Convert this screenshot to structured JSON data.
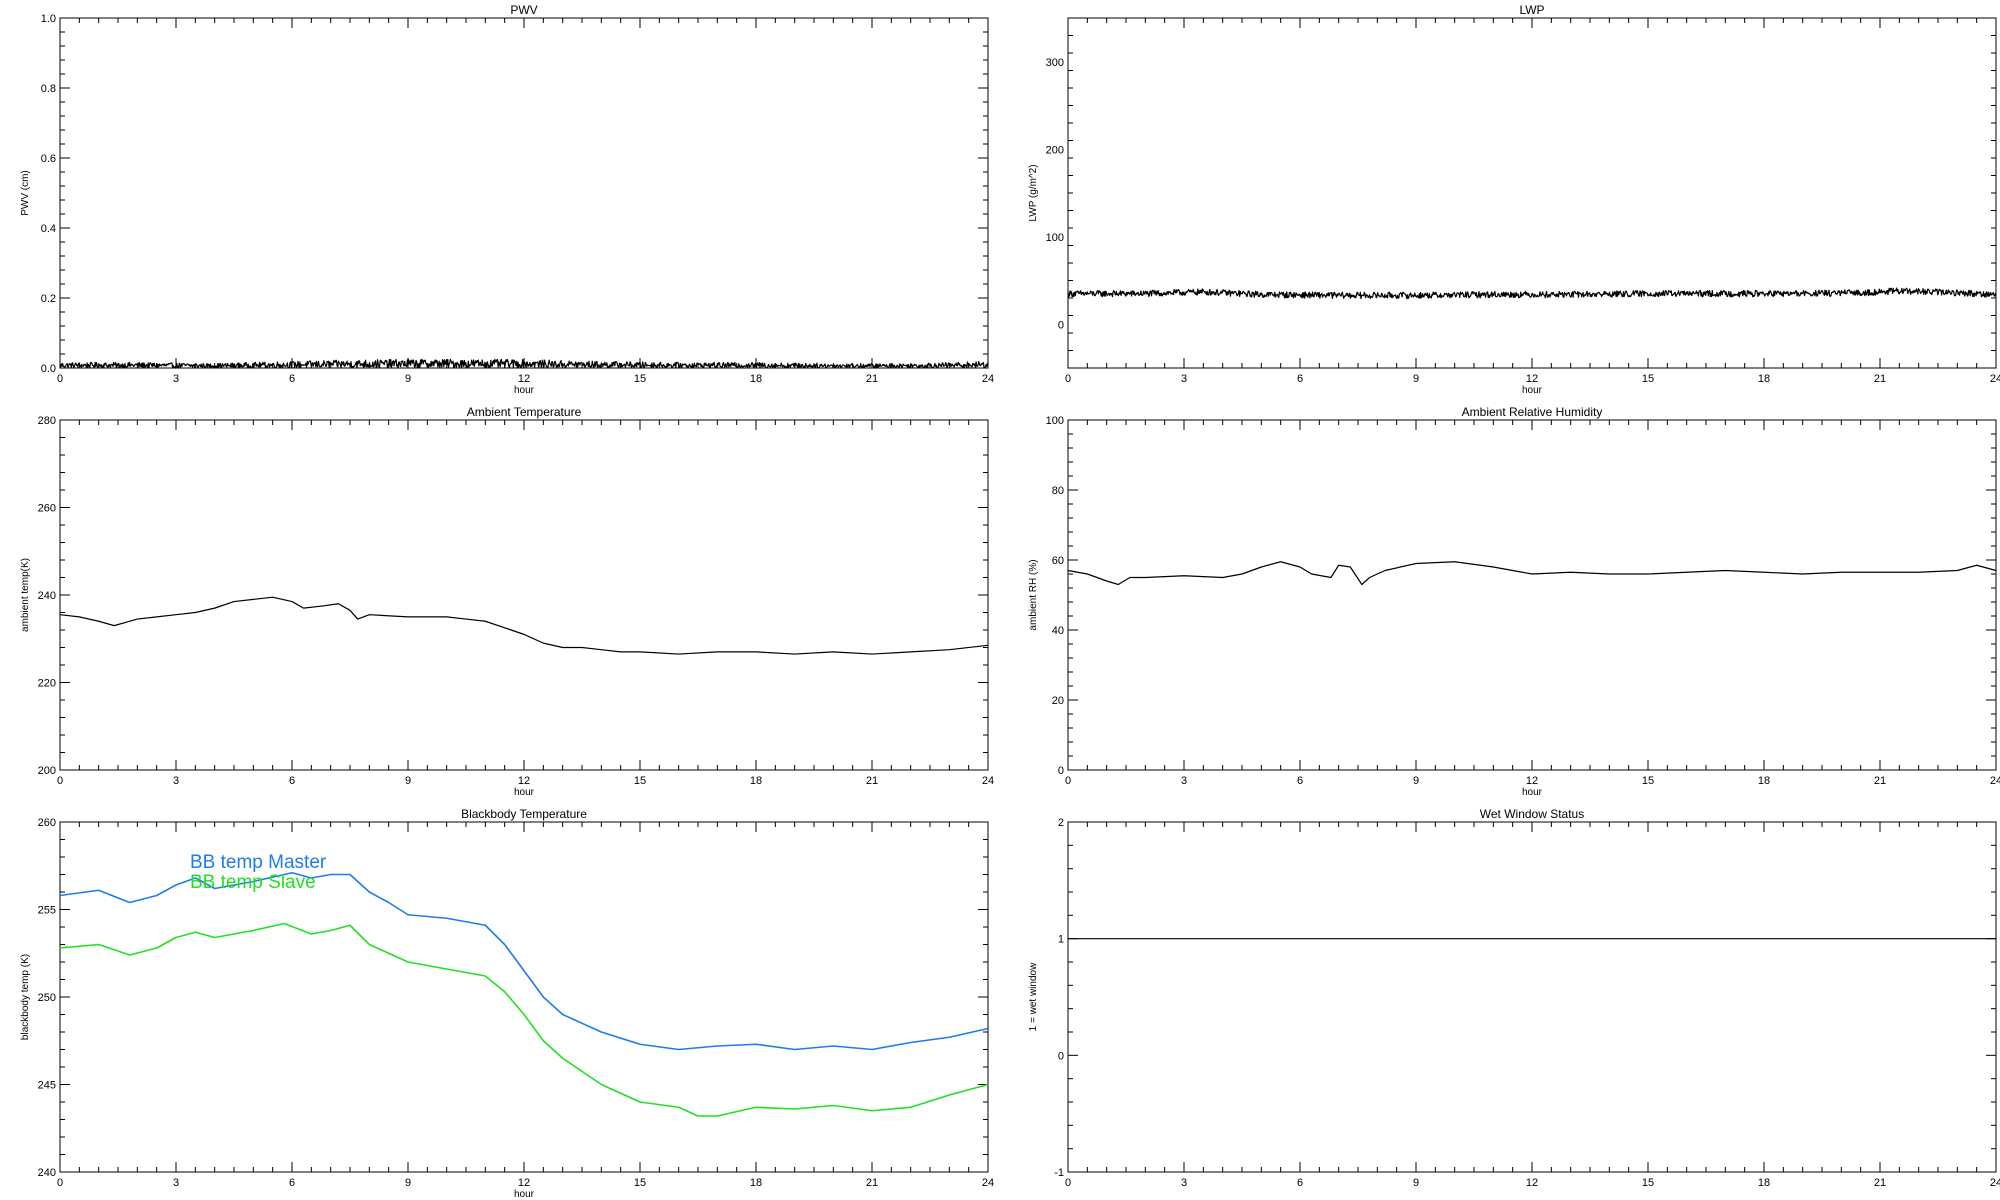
{
  "colors": {
    "background": "#ffffff",
    "axes": "#000000",
    "master": "#1e7bf0",
    "slave": "#22e020"
  },
  "chart_data": [
    {
      "type": "line",
      "title": "PWV",
      "xlabel": "hour",
      "ylabel": "PWV (cm)",
      "xlim": [
        0,
        24
      ],
      "ylim": [
        0,
        1
      ],
      "xticks": [
        0,
        3,
        6,
        9,
        12,
        15,
        18,
        21,
        24
      ],
      "yticks": [
        0,
        0.2,
        0.4,
        0.6,
        0.8,
        1
      ],
      "ytick_labels": [
        "0.0",
        "0.2",
        "0.4",
        "0.6",
        "0.8",
        "1.0"
      ],
      "series": [
        {
          "name": "",
          "color": "#000000",
          "noisy": true,
          "x": [
            0,
            2,
            4,
            6,
            8,
            10,
            12,
            14,
            16,
            18,
            20,
            22,
            24
          ],
          "y": [
            0.01,
            0.01,
            0.008,
            0.012,
            0.015,
            0.016,
            0.015,
            0.012,
            0.01,
            0.01,
            0.008,
            0.008,
            0.012
          ]
        }
      ]
    },
    {
      "type": "line",
      "title": "LWP",
      "xlabel": "hour",
      "ylabel": "LWP (g/m^2)",
      "xlim": [
        0,
        24
      ],
      "ylim": [
        -50,
        350
      ],
      "xticks": [
        0,
        3,
        6,
        9,
        12,
        15,
        18,
        21,
        24
      ],
      "yticks": [
        0,
        100,
        200,
        300
      ],
      "ytick_labels": [
        "0",
        "100",
        "200",
        "300"
      ],
      "series": [
        {
          "name": "",
          "color": "#000000",
          "noisy": true,
          "x": [
            0,
            2,
            3.5,
            5,
            7,
            9,
            11,
            13,
            15,
            17,
            19,
            20.5,
            21.5,
            23,
            24
          ],
          "y": [
            35,
            35,
            37,
            34,
            33,
            33,
            34,
            34,
            35,
            35,
            35,
            36,
            38,
            36,
            34
          ]
        }
      ]
    },
    {
      "type": "line",
      "title": "Ambient Temperature",
      "xlabel": "hour",
      "ylabel": "ambient temp(K)",
      "xlim": [
        0,
        24
      ],
      "ylim": [
        200,
        280
      ],
      "xticks": [
        0,
        3,
        6,
        9,
        12,
        15,
        18,
        21,
        24
      ],
      "yticks": [
        200,
        220,
        240,
        260,
        280
      ],
      "ytick_labels": [
        "200",
        "220",
        "240",
        "260",
        "280"
      ],
      "series": [
        {
          "name": "",
          "color": "#000000",
          "x": [
            0,
            0.5,
            1.0,
            1.4,
            2,
            2.5,
            3,
            3.5,
            4,
            4.5,
            5,
            5.5,
            6,
            6.3,
            6.8,
            7.2,
            7.5,
            7.7,
            8,
            9,
            10,
            10.5,
            11,
            11.5,
            12,
            12.5,
            13,
            13.5,
            14,
            14.5,
            15,
            16,
            17,
            18,
            19,
            20,
            21,
            22,
            23,
            24
          ],
          "y": [
            235.5,
            235,
            234,
            233,
            234.5,
            235,
            235.5,
            236,
            237,
            238.5,
            239,
            239.5,
            238.5,
            237,
            237.5,
            238,
            236.5,
            234.5,
            235.5,
            235,
            235,
            234.5,
            234,
            232.5,
            231,
            229,
            228,
            228,
            227.5,
            227,
            227,
            226.5,
            227,
            227,
            226.5,
            227,
            226.5,
            227,
            227.5,
            228.5
          ]
        }
      ]
    },
    {
      "type": "line",
      "title": "Ambient Relative Humidity",
      "xlabel": "hour",
      "ylabel": "ambient RH (%)",
      "xlim": [
        0,
        24
      ],
      "ylim": [
        0,
        100
      ],
      "xticks": [
        0,
        3,
        6,
        9,
        12,
        15,
        18,
        21,
        24
      ],
      "yticks": [
        0,
        20,
        40,
        60,
        80,
        100
      ],
      "ytick_labels": [
        "0",
        "20",
        "40",
        "60",
        "80",
        "100"
      ],
      "series": [
        {
          "name": "",
          "color": "#000000",
          "x": [
            0,
            0.5,
            1.0,
            1.3,
            1.6,
            2,
            3,
            4,
            4.5,
            5,
            5.5,
            6,
            6.3,
            6.8,
            7.0,
            7.3,
            7.6,
            7.8,
            8.2,
            9,
            10,
            11,
            11.5,
            12,
            13,
            14,
            15,
            16,
            17,
            18,
            19,
            20,
            21,
            22,
            23,
            23.5,
            24
          ],
          "y": [
            57,
            56,
            54,
            53,
            55,
            55,
            55.5,
            55,
            56,
            58,
            59.5,
            58,
            56,
            55,
            58.5,
            58,
            53,
            55,
            57,
            59,
            59.5,
            58,
            57,
            56,
            56.5,
            56,
            56,
            56.5,
            57,
            56.5,
            56,
            56.5,
            56.5,
            56.5,
            57,
            58.5,
            57
          ]
        }
      ]
    },
    {
      "type": "line",
      "title": "Blackbody Temperature",
      "xlabel": "hour",
      "ylabel": "blackbody temp (K)",
      "xlim": [
        0,
        24
      ],
      "ylim": [
        240,
        260
      ],
      "xticks": [
        0,
        3,
        6,
        9,
        12,
        15,
        18,
        21,
        24
      ],
      "yticks": [
        240,
        245,
        250,
        255,
        260
      ],
      "ytick_labels": [
        "240",
        "245",
        "250",
        "255",
        "260"
      ],
      "legend": "top-left",
      "series": [
        {
          "name": "BB temp Master",
          "color": "#1e7bf0",
          "x": [
            0,
            1,
            1.8,
            2.5,
            3,
            3.5,
            4,
            5,
            6,
            6.5,
            7,
            7.5,
            8,
            8.5,
            9,
            10,
            11,
            11.5,
            12,
            12.5,
            13,
            14,
            15,
            16,
            17,
            18,
            19,
            20,
            21,
            22,
            23,
            24
          ],
          "y": [
            255.8,
            256.1,
            255.4,
            255.8,
            256.4,
            256.8,
            256.2,
            256.6,
            257.1,
            256.8,
            257.0,
            257.0,
            256.0,
            255.4,
            254.7,
            254.5,
            254.1,
            253.0,
            251.5,
            250.0,
            249.0,
            248.0,
            247.3,
            247.0,
            247.2,
            247.3,
            247.0,
            247.2,
            247.0,
            247.4,
            247.7,
            248.2
          ]
        },
        {
          "name": "BB temp Slave",
          "color": "#22e020",
          "x": [
            0,
            1,
            1.8,
            2.5,
            3,
            3.5,
            4,
            5,
            5.8,
            6.5,
            7,
            7.5,
            8,
            8.5,
            9,
            10,
            11,
            11.5,
            12,
            12.5,
            13,
            14,
            15,
            16,
            16.5,
            17,
            18,
            19,
            20,
            21,
            22,
            23,
            24
          ],
          "y": [
            252.8,
            253.0,
            252.4,
            252.8,
            253.4,
            253.7,
            253.4,
            253.8,
            254.2,
            253.6,
            253.8,
            254.1,
            253.0,
            252.5,
            252.0,
            251.6,
            251.2,
            250.3,
            249.0,
            247.5,
            246.5,
            245.0,
            244.0,
            243.7,
            243.2,
            243.2,
            243.7,
            243.6,
            243.8,
            243.5,
            243.7,
            244.4,
            245.0
          ]
        }
      ]
    },
    {
      "type": "line",
      "title": "Wet Window Status",
      "xlabel": "",
      "ylabel": "1 = wet window",
      "xlim": [
        0,
        24
      ],
      "ylim": [
        -1,
        2
      ],
      "xticks": [
        0,
        3,
        6,
        9,
        12,
        15,
        18,
        21,
        24
      ],
      "yticks": [
        -1,
        0,
        1,
        2
      ],
      "ytick_labels": [
        "-1",
        "0",
        "1",
        "2"
      ],
      "series": [
        {
          "name": "",
          "color": "#000000",
          "x": [
            0,
            24
          ],
          "y": [
            1,
            1
          ]
        }
      ]
    }
  ]
}
